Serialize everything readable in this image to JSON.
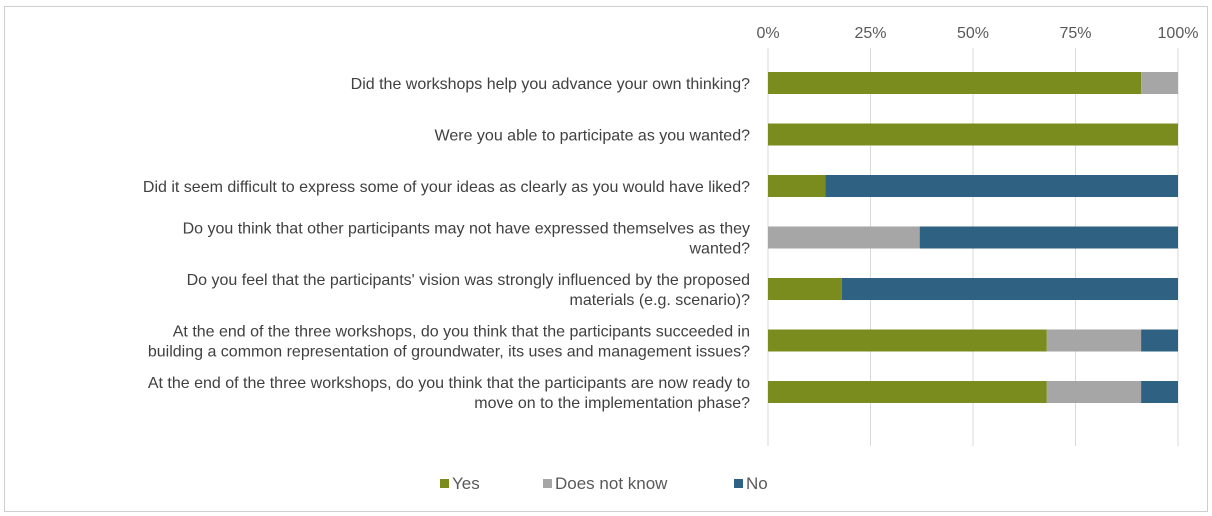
{
  "chart_data": {
    "type": "bar",
    "orientation": "horizontal",
    "stacked": "percent",
    "title": "",
    "xlabel": "",
    "ylabel": "",
    "xlim": [
      0,
      100
    ],
    "x_ticks": [
      "0%",
      "25%",
      "50%",
      "75%",
      "100%"
    ],
    "x_tick_values": [
      0,
      25,
      50,
      75,
      100
    ],
    "x_axis_position": "top",
    "grid": true,
    "legend_position": "bottom",
    "categories": [
      [
        "Did the workshops help you advance your own thinking?"
      ],
      [
        "Were you able to participate as you wanted?"
      ],
      [
        "Did it seem difficult to express some of your ideas as clearly as you would have liked?"
      ],
      [
        "Do you think that other participants may not have expressed themselves as they",
        "wanted?"
      ],
      [
        "Do you feel that the participants' vision was strongly influenced by the proposed",
        "materials (e.g. scenario)?"
      ],
      [
        "At the end of the three workshops, do you think that the participants succeeded in",
        "building a common representation of groundwater, its uses and management issues?"
      ],
      [
        "At the end of the three workshops, do you think that the participants are now ready to",
        "move on to the implementation phase?"
      ]
    ],
    "series": [
      {
        "name": "Yes",
        "color": "#7a8c1e",
        "values": [
          91,
          100,
          14,
          0,
          18,
          68,
          68
        ]
      },
      {
        "name": "Does not know",
        "color": "#a6a6a6",
        "values": [
          9,
          0,
          0,
          37,
          0,
          23,
          23
        ]
      },
      {
        "name": "No",
        "color": "#2e6182",
        "values": [
          0,
          0,
          86,
          63,
          82,
          9,
          9
        ]
      }
    ]
  }
}
